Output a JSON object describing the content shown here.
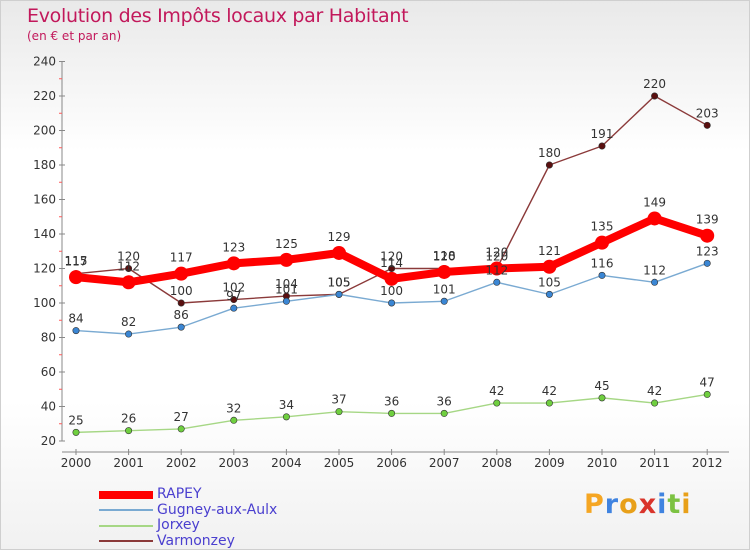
{
  "header": {
    "title": "Evolution des Impôts locaux par Habitant",
    "subtitle": "(en € et par an)"
  },
  "logo": {
    "text": "Proxiti",
    "colors": [
      "#f5a623",
      "#3f83e0",
      "#e8a019",
      "#d9342b",
      "#3f83e0",
      "#7cc242",
      "#e8a019"
    ]
  },
  "chart_data": {
    "type": "line",
    "title": "Evolution des Impôts locaux par Habitant",
    "subtitle": "(en € et par an)",
    "xlabel": "",
    "ylabel": "",
    "ylim": [
      20,
      240
    ],
    "yticks": [
      20,
      40,
      60,
      80,
      100,
      120,
      140,
      160,
      180,
      200,
      220,
      240
    ],
    "x": [
      "2000",
      "2001",
      "2002",
      "2003",
      "2004",
      "2005",
      "2006",
      "2007",
      "2008",
      "2009",
      "2010",
      "2011",
      "2012"
    ],
    "grid": false,
    "legend_position": "bottom-left",
    "series": [
      {
        "name": "Varmonzey",
        "color": "#8b3a3a",
        "marker": "#5a0f0f",
        "values": [
          117,
          120,
          100,
          102,
          104,
          105,
          120,
          120,
          120,
          180,
          191,
          220,
          203
        ]
      },
      {
        "name": "Jorxey",
        "color": "#a6d785",
        "marker": "#6fcf3f",
        "values": [
          25,
          26,
          27,
          32,
          34,
          37,
          36,
          36,
          42,
          42,
          45,
          42,
          47
        ]
      },
      {
        "name": "Gugney-aux-Aulx",
        "color": "#7aaad2",
        "marker": "#3a86d4",
        "values": [
          84,
          82,
          86,
          97,
          101,
          105,
          100,
          101,
          112,
          105,
          116,
          112,
          123
        ]
      },
      {
        "name": "RAPEY",
        "color": "#ff0000",
        "marker": "#ff0000",
        "values": [
          115,
          112,
          117,
          123,
          125,
          129,
          114,
          118,
          120,
          121,
          135,
          149,
          139
        ]
      }
    ]
  },
  "legend": {
    "items": [
      {
        "label": "RAPEY",
        "color": "#ff0000"
      },
      {
        "label": "Gugney-aux-Aulx",
        "color": "#7aaad2"
      },
      {
        "label": "Jorxey",
        "color": "#a6d785"
      },
      {
        "label": "Varmonzey",
        "color": "#8b3a3a"
      }
    ]
  }
}
